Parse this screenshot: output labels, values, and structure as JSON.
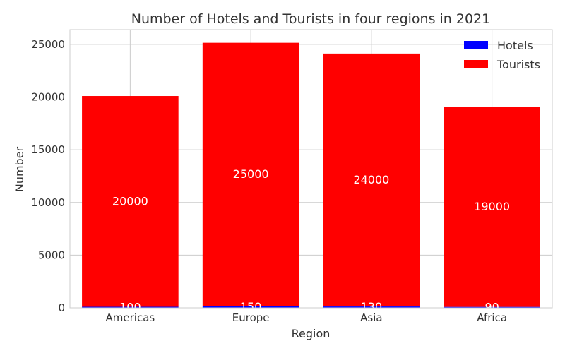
{
  "chart_data": {
    "type": "bar",
    "stacked": true,
    "title": "Number of Hotels and Tourists in four regions in 2021",
    "xlabel": "Region",
    "ylabel": "Number",
    "categories": [
      "Americas",
      "Europe",
      "Asia",
      "Africa"
    ],
    "series": [
      {
        "name": "Hotels",
        "values": [
          100,
          150,
          130,
          90
        ],
        "color": "#0000ff"
      },
      {
        "name": "Tourists",
        "values": [
          20000,
          25000,
          24000,
          19000
        ],
        "color": "#ff0000"
      }
    ],
    "ylim": [
      0,
      26400
    ],
    "yticks": [
      0,
      5000,
      10000,
      15000,
      20000,
      25000
    ],
    "grid": true,
    "legend": "top-right",
    "data_label_color": "#ffffff"
  }
}
